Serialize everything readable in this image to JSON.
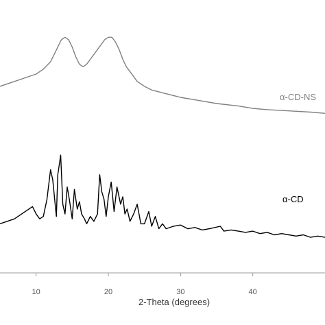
{
  "chart_data": {
    "type": "line",
    "title": "",
    "xlabel": "2-Theta (degrees)",
    "ylabel": "",
    "xlim": [
      5,
      50
    ],
    "ylim": [
      0,
      100
    ],
    "x_ticks": [
      10,
      20,
      30,
      40
    ],
    "grid": false,
    "legend": "none",
    "series": [
      {
        "name": "α-CD-NS",
        "color": "#808080",
        "x": [
          5,
          7,
          9,
          10,
          11,
          12,
          12.5,
          13,
          13.5,
          14,
          14.5,
          15,
          15.5,
          16,
          16.5,
          17,
          17.5,
          18,
          18.5,
          19,
          19.5,
          20,
          20.5,
          21,
          21.5,
          22,
          22.5,
          23,
          24,
          25,
          26,
          28,
          30,
          32,
          35,
          38,
          40,
          42,
          45,
          48,
          50
        ],
        "y": [
          76,
          78,
          80,
          81,
          83,
          86,
          89,
          92,
          95,
          96,
          95,
          92,
          88,
          85,
          84,
          85,
          87,
          89,
          91,
          93,
          95,
          96,
          96,
          94,
          91,
          87,
          84,
          82,
          78,
          76,
          74.5,
          73,
          71.5,
          70.5,
          69,
          68,
          67,
          66.5,
          66,
          65.5,
          65
        ]
      },
      {
        "name": "α-CD",
        "color": "#000000",
        "x": [
          5,
          6,
          7,
          8,
          9,
          9.5,
          10,
          10.5,
          11,
          11.5,
          12,
          12.3,
          12.8,
          13,
          13.4,
          13.7,
          14,
          14.3,
          14.6,
          15,
          15.3,
          15.7,
          16,
          16.3,
          16.7,
          17,
          17.5,
          18,
          18.5,
          18.8,
          19.1,
          19.4,
          19.7,
          20,
          20.4,
          20.8,
          21.2,
          21.7,
          22,
          22.3,
          22.6,
          23,
          23.5,
          24,
          24.5,
          25,
          25.6,
          26,
          26.5,
          27,
          27.5,
          28,
          29,
          30,
          31,
          32,
          33,
          34,
          35.5,
          36,
          37,
          38,
          39,
          40,
          41,
          42,
          43,
          44,
          45,
          46,
          47,
          48,
          49,
          50
        ],
        "y": [
          20,
          21,
          22,
          24,
          26,
          27,
          24,
          22,
          23,
          30,
          42,
          38,
          23,
          40,
          48,
          28,
          24,
          35,
          30,
          22,
          34,
          26,
          29,
          24,
          22,
          20,
          23,
          21,
          24,
          40,
          33,
          30,
          23,
          31,
          37,
          25,
          35,
          28,
          31,
          24,
          26,
          21,
          24,
          28,
          20,
          20,
          25,
          19,
          23,
          18,
          20,
          18,
          19,
          19.5,
          18,
          18.5,
          17.5,
          18,
          19,
          17,
          17.5,
          17,
          16.5,
          17,
          16,
          16.5,
          15.5,
          16,
          15.5,
          15,
          15.5,
          14.5,
          15,
          14.5
        ]
      }
    ]
  }
}
